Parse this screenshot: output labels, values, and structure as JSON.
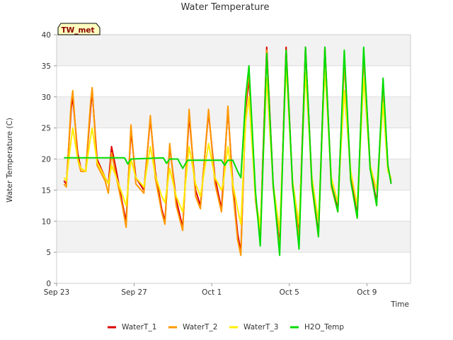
{
  "chart_data": {
    "type": "line",
    "title": "Water Temperature",
    "xlabel": "Time",
    "ylabel": "Water Temperature (C)",
    "station_badge": "TW_met",
    "ylim": [
      0,
      40
    ],
    "yticks": [
      0,
      5,
      10,
      15,
      20,
      25,
      30,
      35,
      40
    ],
    "xlim": [
      "2023-09-23",
      "2023-10-11T06:00"
    ],
    "xticks": [
      {
        "date": "2023-09-23",
        "label": "Sep 23"
      },
      {
        "date": "2023-09-27",
        "label": "Sep 27"
      },
      {
        "date": "2023-10-01",
        "label": "Oct 1"
      },
      {
        "date": "2023-10-05",
        "label": "Oct 5"
      },
      {
        "date": "2023-10-09",
        "label": "Oct 9"
      }
    ],
    "grid": "horizontal bands",
    "legend_position": "bottom",
    "series": [
      {
        "name": "WaterT_1",
        "color": "#dd0000",
        "points": [
          [
            "2023-09-23T09:00",
            16.5
          ],
          [
            "2023-09-23T12:00",
            16.0
          ],
          [
            "2023-09-23T18:00",
            28.0
          ],
          [
            "2023-09-23T20:00",
            30.0
          ],
          [
            "2023-09-24T02:00",
            21.0
          ],
          [
            "2023-09-24T06:00",
            18.5
          ],
          [
            "2023-09-24T12:00",
            18.0
          ],
          [
            "2023-09-24T18:00",
            28.0
          ],
          [
            "2023-09-24T20:00",
            31.0
          ],
          [
            "2023-09-25T02:00",
            20.0
          ],
          [
            "2023-09-25T12:00",
            17.0
          ],
          [
            "2023-09-25T16:00",
            16.0
          ],
          [
            "2023-09-25T20:00",
            22.0
          ],
          [
            "2023-09-26T02:00",
            18.0
          ],
          [
            "2023-09-26T10:00",
            12.5
          ],
          [
            "2023-09-26T14:00",
            10.0
          ],
          [
            "2023-09-26T20:00",
            24.5
          ],
          [
            "2023-09-27T02:00",
            17.0
          ],
          [
            "2023-09-27T12:00",
            15.0
          ],
          [
            "2023-09-27T20:00",
            26.5
          ],
          [
            "2023-09-28T02:00",
            18.0
          ],
          [
            "2023-09-28T10:00",
            12.0
          ],
          [
            "2023-09-28T14:00",
            10.0
          ],
          [
            "2023-09-28T20:00",
            22.0
          ],
          [
            "2023-09-29T04:00",
            13.5
          ],
          [
            "2023-09-29T12:00",
            9.0
          ],
          [
            "2023-09-29T20:00",
            27.0
          ],
          [
            "2023-09-30T04:00",
            15.0
          ],
          [
            "2023-09-30T10:00",
            12.5
          ],
          [
            "2023-09-30T20:00",
            27.5
          ],
          [
            "2023-10-01T04:00",
            17.0
          ],
          [
            "2023-10-01T12:00",
            12.0
          ],
          [
            "2023-10-01T14:00",
            16.0
          ],
          [
            "2023-10-01T20:00",
            28.0
          ],
          [
            "2023-10-02T02:00",
            16.0
          ],
          [
            "2023-10-02T08:00",
            8.0
          ],
          [
            "2023-10-02T12:00",
            5.0
          ],
          [
            "2023-10-02T18:00",
            28.0
          ],
          [
            "2023-10-02T22:00",
            33.0
          ],
          [
            "2023-10-03T06:00",
            14.0
          ],
          [
            "2023-10-03T12:00",
            8.0
          ],
          [
            "2023-10-03T20:00",
            38.0
          ],
          [
            "2023-10-04T04:00",
            16.0
          ],
          [
            "2023-10-04T12:00",
            6.0
          ],
          [
            "2023-10-04T20:00",
            38.0
          ],
          [
            "2023-10-05T04:00",
            16.0
          ],
          [
            "2023-10-05T12:00",
            8.0
          ],
          [
            "2023-10-05T20:00",
            38.0
          ],
          [
            "2023-10-06T04:00",
            16.0
          ],
          [
            "2023-10-06T12:00",
            8.0
          ],
          [
            "2023-10-06T20:00",
            38.0
          ],
          [
            "2023-10-07T04:00",
            16.0
          ],
          [
            "2023-10-07T12:00",
            12.0
          ],
          [
            "2023-10-07T20:00",
            36.0
          ],
          [
            "2023-10-08T04:00",
            17.0
          ],
          [
            "2023-10-08T12:00",
            11.0
          ],
          [
            "2023-10-08T20:00",
            37.0
          ],
          [
            "2023-10-09T04:00",
            19.0
          ],
          [
            "2023-10-09T12:00",
            13.0
          ],
          [
            "2023-10-09T20:00",
            32.0
          ],
          [
            "2023-10-10T02:00",
            19.0
          ],
          [
            "2023-10-10T06:00",
            16.0
          ]
        ]
      },
      {
        "name": "WaterT_2",
        "color": "#ff9900",
        "points": [
          [
            "2023-09-23T09:00",
            16.0
          ],
          [
            "2023-09-23T12:00",
            15.5
          ],
          [
            "2023-09-23T18:00",
            29.0
          ],
          [
            "2023-09-23T20:00",
            31.0
          ],
          [
            "2023-09-24T02:00",
            20.0
          ],
          [
            "2023-09-24T06:00",
            18.0
          ],
          [
            "2023-09-24T12:00",
            18.0
          ],
          [
            "2023-09-24T18:00",
            29.0
          ],
          [
            "2023-09-24T20:00",
            31.5
          ],
          [
            "2023-09-25T02:00",
            19.0
          ],
          [
            "2023-09-25T12:00",
            16.5
          ],
          [
            "2023-09-25T16:00",
            14.5
          ],
          [
            "2023-09-25T20:00",
            21.0
          ],
          [
            "2023-09-26T02:00",
            17.0
          ],
          [
            "2023-09-26T10:00",
            12.0
          ],
          [
            "2023-09-26T14:00",
            9.0
          ],
          [
            "2023-09-26T20:00",
            25.5
          ],
          [
            "2023-09-27T02:00",
            16.0
          ],
          [
            "2023-09-27T12:00",
            14.5
          ],
          [
            "2023-09-27T20:00",
            27.0
          ],
          [
            "2023-09-28T02:00",
            17.0
          ],
          [
            "2023-09-28T10:00",
            11.5
          ],
          [
            "2023-09-28T14:00",
            9.5
          ],
          [
            "2023-09-28T20:00",
            22.5
          ],
          [
            "2023-09-29T04:00",
            12.5
          ],
          [
            "2023-09-29T12:00",
            8.5
          ],
          [
            "2023-09-29T20:00",
            28.0
          ],
          [
            "2023-09-30T04:00",
            14.0
          ],
          [
            "2023-09-30T10:00",
            12.0
          ],
          [
            "2023-09-30T20:00",
            28.0
          ],
          [
            "2023-10-01T04:00",
            16.0
          ],
          [
            "2023-10-01T12:00",
            11.5
          ],
          [
            "2023-10-01T14:00",
            15.0
          ],
          [
            "2023-10-01T20:00",
            28.5
          ],
          [
            "2023-10-02T02:00",
            15.0
          ],
          [
            "2023-10-02T08:00",
            7.0
          ],
          [
            "2023-10-02T12:00",
            4.5
          ],
          [
            "2023-10-02T18:00",
            29.0
          ],
          [
            "2023-10-02T22:00",
            34.0
          ],
          [
            "2023-10-03T06:00",
            13.5
          ],
          [
            "2023-10-03T12:00",
            7.5
          ],
          [
            "2023-10-03T20:00",
            37.5
          ],
          [
            "2023-10-04T04:00",
            15.5
          ],
          [
            "2023-10-04T12:00",
            5.5
          ],
          [
            "2023-10-04T20:00",
            37.5
          ],
          [
            "2023-10-05T04:00",
            15.5
          ],
          [
            "2023-10-05T12:00",
            7.5
          ],
          [
            "2023-10-05T20:00",
            37.5
          ],
          [
            "2023-10-06T04:00",
            15.5
          ],
          [
            "2023-10-06T12:00",
            7.5
          ],
          [
            "2023-10-06T20:00",
            37.5
          ],
          [
            "2023-10-07T04:00",
            15.5
          ],
          [
            "2023-10-07T12:00",
            11.5
          ],
          [
            "2023-10-07T20:00",
            35.5
          ],
          [
            "2023-10-08T04:00",
            16.5
          ],
          [
            "2023-10-08T12:00",
            10.5
          ],
          [
            "2023-10-08T20:00",
            36.5
          ],
          [
            "2023-10-09T04:00",
            18.5
          ],
          [
            "2023-10-09T12:00",
            12.5
          ],
          [
            "2023-10-09T20:00",
            31.5
          ],
          [
            "2023-10-10T02:00",
            18.5
          ],
          [
            "2023-10-10T06:00",
            16.5
          ]
        ]
      },
      {
        "name": "WaterT_3",
        "color": "#ffee00",
        "points": [
          [
            "2023-09-23T09:00",
            17.0
          ],
          [
            "2023-09-23T12:00",
            16.5
          ],
          [
            "2023-09-23T18:00",
            23.0
          ],
          [
            "2023-09-23T20:00",
            25.0
          ],
          [
            "2023-09-24T02:00",
            20.0
          ],
          [
            "2023-09-24T06:00",
            18.5
          ],
          [
            "2023-09-24T12:00",
            18.0
          ],
          [
            "2023-09-24T18:00",
            23.5
          ],
          [
            "2023-09-24T20:00",
            25.0
          ],
          [
            "2023-09-25T02:00",
            19.5
          ],
          [
            "2023-09-25T12:00",
            17.0
          ],
          [
            "2023-09-25T16:00",
            16.0
          ],
          [
            "2023-09-25T20:00",
            19.0
          ],
          [
            "2023-09-26T02:00",
            17.0
          ],
          [
            "2023-09-26T10:00",
            14.0
          ],
          [
            "2023-09-26T14:00",
            12.5
          ],
          [
            "2023-09-26T20:00",
            20.0
          ],
          [
            "2023-09-27T02:00",
            17.0
          ],
          [
            "2023-09-27T12:00",
            15.5
          ],
          [
            "2023-09-27T20:00",
            22.0
          ],
          [
            "2023-09-28T02:00",
            17.5
          ],
          [
            "2023-09-28T10:00",
            14.0
          ],
          [
            "2023-09-28T14:00",
            13.0
          ],
          [
            "2023-09-28T20:00",
            18.5
          ],
          [
            "2023-09-29T04:00",
            14.0
          ],
          [
            "2023-09-29T12:00",
            11.5
          ],
          [
            "2023-09-29T20:00",
            22.0
          ],
          [
            "2023-09-30T04:00",
            16.0
          ],
          [
            "2023-09-30T10:00",
            14.0
          ],
          [
            "2023-09-30T20:00",
            22.5
          ],
          [
            "2023-10-01T04:00",
            17.0
          ],
          [
            "2023-10-01T12:00",
            15.0
          ],
          [
            "2023-10-01T14:00",
            16.0
          ],
          [
            "2023-10-01T20:00",
            22.0
          ],
          [
            "2023-10-02T02:00",
            16.0
          ],
          [
            "2023-10-02T08:00",
            12.0
          ],
          [
            "2023-10-02T12:00",
            9.5
          ],
          [
            "2023-10-02T18:00",
            26.0
          ],
          [
            "2023-10-02T22:00",
            30.0
          ],
          [
            "2023-10-03T06:00",
            14.0
          ],
          [
            "2023-10-03T12:00",
            9.0
          ],
          [
            "2023-10-03T20:00",
            33.0
          ],
          [
            "2023-10-04T04:00",
            16.0
          ],
          [
            "2023-10-04T12:00",
            8.5
          ],
          [
            "2023-10-04T20:00",
            35.0
          ],
          [
            "2023-10-05T04:00",
            16.5
          ],
          [
            "2023-10-05T12:00",
            9.5
          ],
          [
            "2023-10-05T20:00",
            34.0
          ],
          [
            "2023-10-06T04:00",
            17.0
          ],
          [
            "2023-10-06T12:00",
            10.0
          ],
          [
            "2023-10-06T20:00",
            34.5
          ],
          [
            "2023-10-07T04:00",
            17.0
          ],
          [
            "2023-10-07T12:00",
            13.0
          ],
          [
            "2023-10-07T20:00",
            31.0
          ],
          [
            "2023-10-08T04:00",
            18.0
          ],
          [
            "2023-10-08T12:00",
            12.5
          ],
          [
            "2023-10-08T20:00",
            33.0
          ],
          [
            "2023-10-09T04:00",
            19.0
          ],
          [
            "2023-10-09T12:00",
            15.0
          ],
          [
            "2023-10-09T20:00",
            29.0
          ],
          [
            "2023-10-10T02:00",
            18.0
          ],
          [
            "2023-10-10T06:00",
            17.0
          ]
        ]
      },
      {
        "name": "H2O_Temp",
        "color": "#00dd00",
        "points": [
          [
            "2023-09-23T09:00",
            20.2
          ],
          [
            "2023-09-26T12:00",
            20.2
          ],
          [
            "2023-09-26T16:00",
            19.2
          ],
          [
            "2023-09-26T20:00",
            20.0
          ],
          [
            "2023-09-28T12:00",
            20.2
          ],
          [
            "2023-09-28T16:00",
            19.3
          ],
          [
            "2023-09-28T20:00",
            20.0
          ],
          [
            "2023-09-29T06:00",
            20.0
          ],
          [
            "2023-09-29T12:00",
            18.5
          ],
          [
            "2023-09-29T18:00",
            19.8
          ],
          [
            "2023-10-01T12:00",
            19.8
          ],
          [
            "2023-10-01T16:00",
            19.0
          ],
          [
            "2023-10-01T20:00",
            19.8
          ],
          [
            "2023-10-02T02:00",
            19.8
          ],
          [
            "2023-10-02T08:00",
            18.0
          ],
          [
            "2023-10-02T12:00",
            17.0
          ],
          [
            "2023-10-02T18:00",
            30.0
          ],
          [
            "2023-10-02T22:00",
            35.0
          ],
          [
            "2023-10-03T06:00",
            15.0
          ],
          [
            "2023-10-03T12:00",
            6.0
          ],
          [
            "2023-10-03T20:00",
            37.0
          ],
          [
            "2023-10-04T04:00",
            16.0
          ],
          [
            "2023-10-04T12:00",
            4.5
          ],
          [
            "2023-10-04T20:00",
            37.5
          ],
          [
            "2023-10-05T04:00",
            16.0
          ],
          [
            "2023-10-05T12:00",
            5.5
          ],
          [
            "2023-10-05T20:00",
            38.0
          ],
          [
            "2023-10-06T04:00",
            16.0
          ],
          [
            "2023-10-06T12:00",
            7.5
          ],
          [
            "2023-10-06T20:00",
            38.0
          ],
          [
            "2023-10-07T04:00",
            16.0
          ],
          [
            "2023-10-07T12:00",
            11.5
          ],
          [
            "2023-10-07T20:00",
            37.5
          ],
          [
            "2023-10-08T04:00",
            16.5
          ],
          [
            "2023-10-08T12:00",
            10.5
          ],
          [
            "2023-10-08T20:00",
            38.0
          ],
          [
            "2023-10-09T04:00",
            18.5
          ],
          [
            "2023-10-09T12:00",
            12.5
          ],
          [
            "2023-10-09T20:00",
            33.0
          ],
          [
            "2023-10-10T02:00",
            19.0
          ],
          [
            "2023-10-10T06:00",
            16.0
          ]
        ]
      }
    ]
  }
}
